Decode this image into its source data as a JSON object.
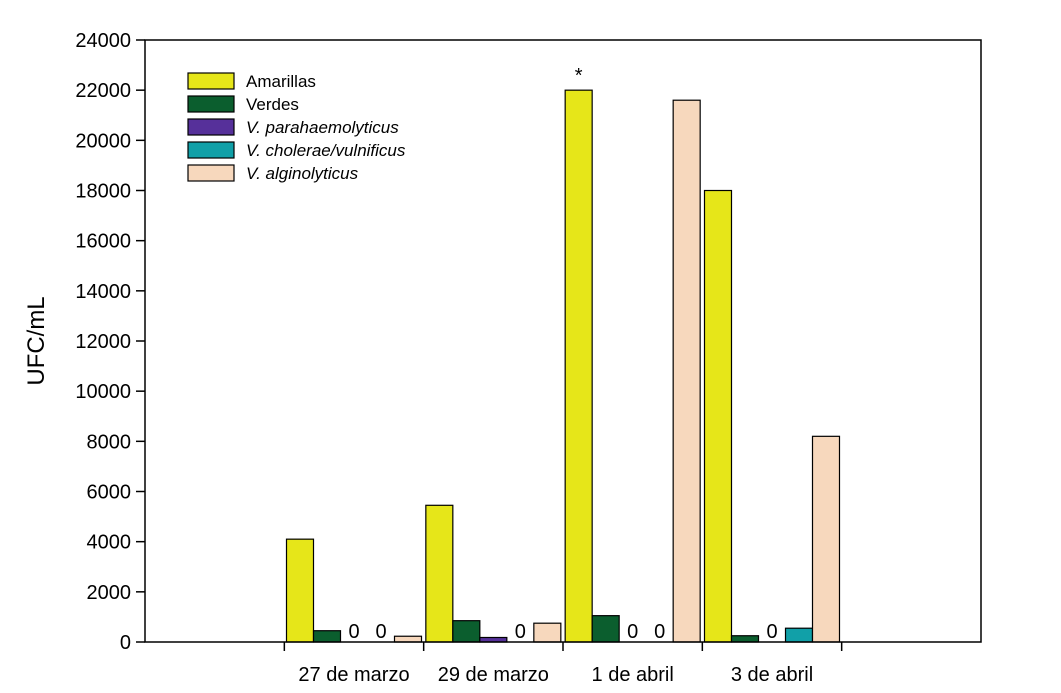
{
  "chart_data": {
    "type": "bar",
    "ylabel": "UFC/mL",
    "xlabel": "",
    "ylim": [
      0,
      24000
    ],
    "yticks": [
      0,
      2000,
      4000,
      6000,
      8000,
      10000,
      12000,
      14000,
      16000,
      18000,
      20000,
      22000,
      24000
    ],
    "categories": [
      "",
      "27 de marzo",
      "29 de marzo",
      "1 de abril",
      "3 de abril",
      ""
    ],
    "legend_position": "top-left",
    "grid": false,
    "series": [
      {
        "name": "Amarillas",
        "italic": false,
        "color": "#e6e619",
        "values": [
          null,
          4100,
          5450,
          22000,
          18000,
          null
        ]
      },
      {
        "name": "Verdes",
        "italic": false,
        "color": "#0b5e2e",
        "values": [
          null,
          450,
          850,
          1050,
          250,
          null
        ]
      },
      {
        "name": "V. parahaemolyticus",
        "italic": true,
        "color": "#56309a",
        "values": [
          null,
          0,
          180,
          0,
          0,
          null
        ]
      },
      {
        "name": "V. cholerae/vulnificus",
        "italic": true,
        "color": "#11a0a8",
        "values": [
          null,
          0,
          0,
          0,
          550,
          null
        ]
      },
      {
        "name": "V. alginolyticus",
        "italic": true,
        "color": "#f7d8bd",
        "values": [
          null,
          230,
          750,
          21600,
          8200,
          null
        ]
      }
    ],
    "annotations": [
      {
        "text": "0",
        "category": 1,
        "series": 2
      },
      {
        "text": "0",
        "category": 1,
        "series": 3
      },
      {
        "text": "0",
        "category": 2,
        "series": 3
      },
      {
        "text": "0",
        "category": 3,
        "series": 2
      },
      {
        "text": "0",
        "category": 3,
        "series": 3
      },
      {
        "text": "0",
        "category": 4,
        "series": 2
      },
      {
        "text": "*",
        "category": 3,
        "series": 0
      }
    ]
  }
}
